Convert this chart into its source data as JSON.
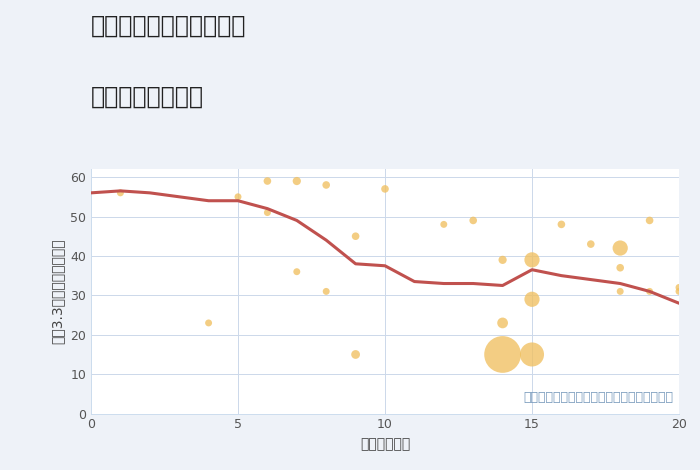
{
  "title_line1": "神奈川県伊勢原市粟窪の",
  "title_line2": "駅距離別土地価格",
  "xlabel": "駅距離（分）",
  "ylabel": "坪（3.3㎡）単価（万円）",
  "annotation": "円の大きさは、取引のあった物件面積を示す",
  "xlim": [
    0,
    20
  ],
  "ylim": [
    0,
    62
  ],
  "xticks": [
    0,
    5,
    10,
    15,
    20
  ],
  "yticks": [
    0,
    10,
    20,
    30,
    40,
    50,
    60
  ],
  "line_x": [
    0,
    1,
    2,
    3,
    4,
    5,
    6,
    7,
    8,
    9,
    10,
    11,
    12,
    13,
    14,
    15,
    16,
    17,
    18,
    19,
    20
  ],
  "line_y": [
    56,
    56.5,
    56,
    55,
    54,
    54,
    52,
    49,
    44,
    38,
    37.5,
    33.5,
    33,
    33,
    32.5,
    36.5,
    35,
    34,
    33,
    31,
    28
  ],
  "line_color": "#c0514e",
  "scatter_x": [
    1,
    4,
    5,
    6,
    6,
    7,
    7,
    8,
    8,
    9,
    9,
    10,
    12,
    13,
    14,
    14,
    14,
    15,
    15,
    15,
    16,
    17,
    18,
    18,
    18,
    19,
    19,
    20,
    20
  ],
  "scatter_y": [
    56,
    23,
    55,
    59,
    51,
    59,
    36,
    58,
    31,
    45,
    15,
    57,
    48,
    49,
    39,
    23,
    15,
    29,
    15,
    39,
    48,
    43,
    42,
    37,
    31,
    49,
    31,
    32,
    31
  ],
  "scatter_size": [
    25,
    25,
    25,
    30,
    25,
    35,
    25,
    30,
    25,
    30,
    40,
    30,
    25,
    30,
    35,
    60,
    700,
    120,
    300,
    120,
    30,
    30,
    120,
    30,
    25,
    30,
    25,
    25,
    25
  ],
  "scatter_color": "#f0c060",
  "scatter_alpha": 0.78,
  "background_color": "#eef2f8",
  "plot_bg": "#ffffff",
  "title_color": "#222222",
  "annotation_color": "#7799bb",
  "title_fontsize": 17,
  "label_fontsize": 10,
  "tick_fontsize": 9,
  "annotation_fontsize": 9
}
